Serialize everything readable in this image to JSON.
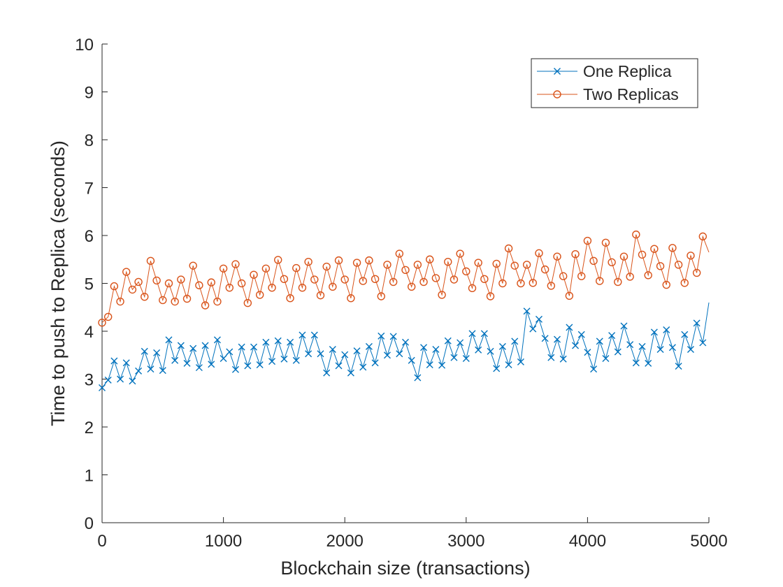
{
  "chart_data": {
    "type": "line",
    "title": "",
    "xlabel": "Blockchain size (transactions)",
    "ylabel": "Time to push to Replica (seconds)",
    "xlim": [
      0,
      5000
    ],
    "ylim": [
      0,
      10
    ],
    "xticks": [
      0,
      1000,
      2000,
      3000,
      4000,
      5000
    ],
    "yticks": [
      0,
      1,
      2,
      3,
      4,
      5,
      6,
      7,
      8,
      9,
      10
    ],
    "grid": false,
    "legend_position": "top-right",
    "x": [
      0,
      50,
      100,
      150,
      200,
      250,
      300,
      350,
      400,
      450,
      500,
      550,
      600,
      650,
      700,
      750,
      800,
      850,
      900,
      950,
      1000,
      1050,
      1100,
      1150,
      1200,
      1250,
      1300,
      1350,
      1400,
      1450,
      1500,
      1550,
      1600,
      1650,
      1700,
      1750,
      1800,
      1850,
      1900,
      1950,
      2000,
      2050,
      2100,
      2150,
      2200,
      2250,
      2300,
      2350,
      2400,
      2450,
      2500,
      2550,
      2600,
      2650,
      2700,
      2750,
      2800,
      2850,
      2900,
      2950,
      3000,
      3050,
      3100,
      3150,
      3200,
      3250,
      3300,
      3350,
      3400,
      3450,
      3500,
      3550,
      3600,
      3650,
      3700,
      3750,
      3800,
      3850,
      3900,
      3950,
      4000,
      4050,
      4100,
      4150,
      4200,
      4250,
      4300,
      4350,
      4400,
      4450,
      4500,
      4550,
      4600,
      4650,
      4700,
      4750,
      4800,
      4850,
      4900,
      4950,
      5000
    ],
    "series": [
      {
        "name": "One Replica",
        "color": "#0072BD",
        "marker": "x",
        "values": [
          2.82,
          2.98,
          3.38,
          3.0,
          3.34,
          2.96,
          3.17,
          3.58,
          3.21,
          3.55,
          3.18,
          3.82,
          3.39,
          3.7,
          3.33,
          3.64,
          3.24,
          3.7,
          3.31,
          3.82,
          3.43,
          3.57,
          3.2,
          3.67,
          3.28,
          3.67,
          3.3,
          3.77,
          3.37,
          3.8,
          3.42,
          3.77,
          3.39,
          3.92,
          3.53,
          3.92,
          3.53,
          3.13,
          3.62,
          3.28,
          3.51,
          3.13,
          3.59,
          3.25,
          3.68,
          3.34,
          3.9,
          3.5,
          3.89,
          3.53,
          3.77,
          3.39,
          3.03,
          3.66,
          3.3,
          3.62,
          3.29,
          3.8,
          3.45,
          3.76,
          3.43,
          3.95,
          3.61,
          3.95,
          3.58,
          3.22,
          3.68,
          3.3,
          3.79,
          3.36,
          4.42,
          4.05,
          4.25,
          3.85,
          3.45,
          3.83,
          3.42,
          4.08,
          3.7,
          3.93,
          3.56,
          3.21,
          3.79,
          3.43,
          3.91,
          3.57,
          4.11,
          3.72,
          3.34,
          3.68,
          3.33,
          3.98,
          3.62,
          4.03,
          3.66,
          3.27,
          3.93,
          3.62,
          4.17,
          3.76,
          4.6
        ]
      },
      {
        "name": "Two Replicas",
        "color": "#D95319",
        "marker": "o",
        "values": [
          4.18,
          4.3,
          4.94,
          4.62,
          5.24,
          4.87,
          5.03,
          4.72,
          5.47,
          5.06,
          4.65,
          5.0,
          4.62,
          5.08,
          4.68,
          5.37,
          4.96,
          4.54,
          5.02,
          4.62,
          5.31,
          4.91,
          5.4,
          5.0,
          4.59,
          5.18,
          4.76,
          5.31,
          4.91,
          5.49,
          5.09,
          4.69,
          5.32,
          4.91,
          5.45,
          5.08,
          4.75,
          5.35,
          4.93,
          5.48,
          5.08,
          4.69,
          5.43,
          5.05,
          5.48,
          5.09,
          4.73,
          5.39,
          5.03,
          5.62,
          5.28,
          4.93,
          5.39,
          5.03,
          5.5,
          5.11,
          4.76,
          5.45,
          5.08,
          5.62,
          5.25,
          4.9,
          5.43,
          5.09,
          4.73,
          5.41,
          5.0,
          5.73,
          5.37,
          5.0,
          5.39,
          5.01,
          5.63,
          5.29,
          4.95,
          5.56,
          5.15,
          4.74,
          5.61,
          5.15,
          5.89,
          5.47,
          5.05,
          5.85,
          5.44,
          5.03,
          5.56,
          5.14,
          6.02,
          5.6,
          5.17,
          5.72,
          5.36,
          4.97,
          5.74,
          5.39,
          5.01,
          5.58,
          5.22,
          5.98,
          5.65
        ]
      }
    ]
  }
}
